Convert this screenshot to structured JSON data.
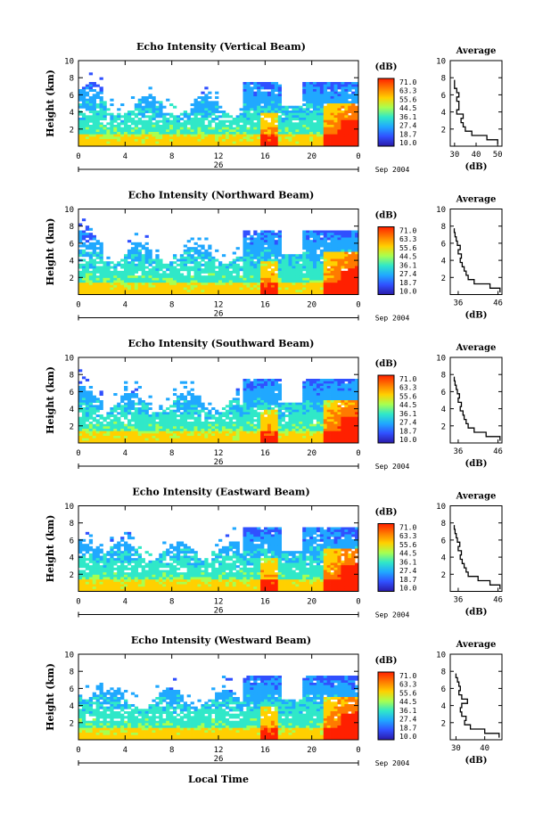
{
  "figure": {
    "xlabel": "Local Time",
    "date_label": "Sep 2004",
    "day_label": "26",
    "colorbar_unit": "(dB)",
    "colorbar_ticks": [
      "71.0",
      "63.3",
      "55.6",
      "44.5",
      "36.1",
      "27.4",
      "18.7",
      "10.0"
    ],
    "colorbar_colors": [
      "#ff2000",
      "#ff7a00",
      "#ffd000",
      "#a8ff50",
      "#30e8c8",
      "#20a8ff",
      "#3050ff",
      "#2a1aa8"
    ]
  },
  "chart_data": [
    {
      "type": "heatmap",
      "title": "Echo Intensity (Vertical Beam)",
      "ylabel": "Height (km)",
      "x_ticks": [
        "0",
        "4",
        "8",
        "12",
        "16",
        "20",
        "0"
      ],
      "y_ticks": [
        "10",
        "8",
        "6",
        "4",
        "2"
      ],
      "xlim": [
        0,
        24
      ],
      "ylim": [
        0,
        10
      ],
      "profile": {
        "title": "Average",
        "xlabel": "(dB)",
        "x_ticks": [
          "30",
          "40",
          "50"
        ],
        "xlim": [
          28,
          52
        ],
        "heights": [
          0.5,
          1.0,
          1.5,
          2.0,
          2.5,
          3.0,
          3.5,
          4.0,
          4.5,
          5.0,
          5.5,
          6.0,
          6.5,
          7.0,
          7.5
        ],
        "values": [
          50,
          45,
          38,
          35,
          34,
          33,
          34,
          31,
          32,
          32,
          31,
          32,
          31,
          30,
          30
        ]
      }
    },
    {
      "type": "heatmap",
      "title": "Echo Intensity (Northward Beam)",
      "ylabel": "Height (km)",
      "x_ticks": [
        "0",
        "4",
        "8",
        "12",
        "16",
        "20",
        "0"
      ],
      "y_ticks": [
        "10",
        "8",
        "6",
        "4",
        "2"
      ],
      "xlim": [
        0,
        24
      ],
      "ylim": [
        0,
        10
      ],
      "profile": {
        "title": "Average",
        "xlabel": "(dB)",
        "x_ticks": [
          "36",
          "46"
        ],
        "xlim": [
          34,
          47
        ],
        "heights": [
          0.5,
          1.0,
          1.5,
          2.0,
          2.5,
          3.0,
          3.5,
          4.0,
          4.5,
          5.0,
          5.5,
          6.0,
          6.5,
          7.0,
          7.5
        ],
        "values": [
          46.5,
          44,
          40,
          38.5,
          38,
          37.5,
          37,
          36.5,
          36.8,
          36,
          36.5,
          35.8,
          35.5,
          35.2,
          35
        ]
      }
    },
    {
      "type": "heatmap",
      "title": "Echo Intensity (Southward Beam)",
      "ylabel": "Height (km)",
      "x_ticks": [
        "0",
        "4",
        "8",
        "12",
        "16",
        "20",
        "0"
      ],
      "y_ticks": [
        "10",
        "8",
        "6",
        "4",
        "2"
      ],
      "xlim": [
        0,
        24
      ],
      "ylim": [
        0,
        10
      ],
      "profile": {
        "title": "Average",
        "xlabel": "(dB)",
        "x_ticks": [
          "36",
          "46"
        ],
        "xlim": [
          34,
          47
        ],
        "heights": [
          0.5,
          1.0,
          1.5,
          2.0,
          2.5,
          3.0,
          3.5,
          4.0,
          4.5,
          5.0,
          5.5,
          6.0,
          6.5,
          7.0,
          7.5
        ],
        "values": [
          46.5,
          43,
          40,
          38.5,
          38,
          37.5,
          37.2,
          36.5,
          36.8,
          36,
          36.3,
          35.8,
          35.5,
          35.2,
          35
        ]
      }
    },
    {
      "type": "heatmap",
      "title": "Echo Intensity (Eastward Beam)",
      "ylabel": "Height (km)",
      "x_ticks": [
        "0",
        "4",
        "8",
        "12",
        "16",
        "20",
        "0"
      ],
      "y_ticks": [
        "10",
        "8",
        "6",
        "4",
        "2"
      ],
      "xlim": [
        0,
        24
      ],
      "ylim": [
        0,
        10
      ],
      "profile": {
        "title": "Average",
        "xlabel": "(dB)",
        "x_ticks": [
          "36",
          "46"
        ],
        "xlim": [
          34,
          47
        ],
        "heights": [
          0.5,
          1.0,
          1.5,
          2.0,
          2.5,
          3.0,
          3.5,
          4.0,
          4.5,
          5.0,
          5.5,
          6.0,
          6.5,
          7.0,
          7.5
        ],
        "values": [
          46.5,
          44,
          41,
          38.5,
          38,
          37.5,
          37,
          36.5,
          36.8,
          36,
          36.4,
          35.8,
          35.5,
          35.2,
          35
        ]
      }
    },
    {
      "type": "heatmap",
      "title": "Echo Intensity (Westward Beam)",
      "ylabel": "Height (km)",
      "x_ticks": [
        "0",
        "4",
        "8",
        "12",
        "16",
        "20",
        "0"
      ],
      "y_ticks": [
        "10",
        "8",
        "6",
        "4",
        "2"
      ],
      "xlim": [
        0,
        24
      ],
      "ylim": [
        0,
        10
      ],
      "profile": {
        "title": "Average",
        "xlabel": "(dB)",
        "x_ticks": [
          "30",
          "40"
        ],
        "xlim": [
          28,
          46
        ],
        "heights": [
          0.5,
          1.0,
          1.5,
          2.0,
          2.5,
          3.0,
          3.5,
          4.0,
          4.5,
          5.0,
          5.5,
          6.0,
          6.5,
          7.0,
          7.5
        ],
        "values": [
          45,
          40,
          35,
          33,
          33.5,
          32,
          31.5,
          32,
          34,
          32,
          31,
          31.5,
          31,
          30.5,
          30
        ]
      }
    }
  ]
}
